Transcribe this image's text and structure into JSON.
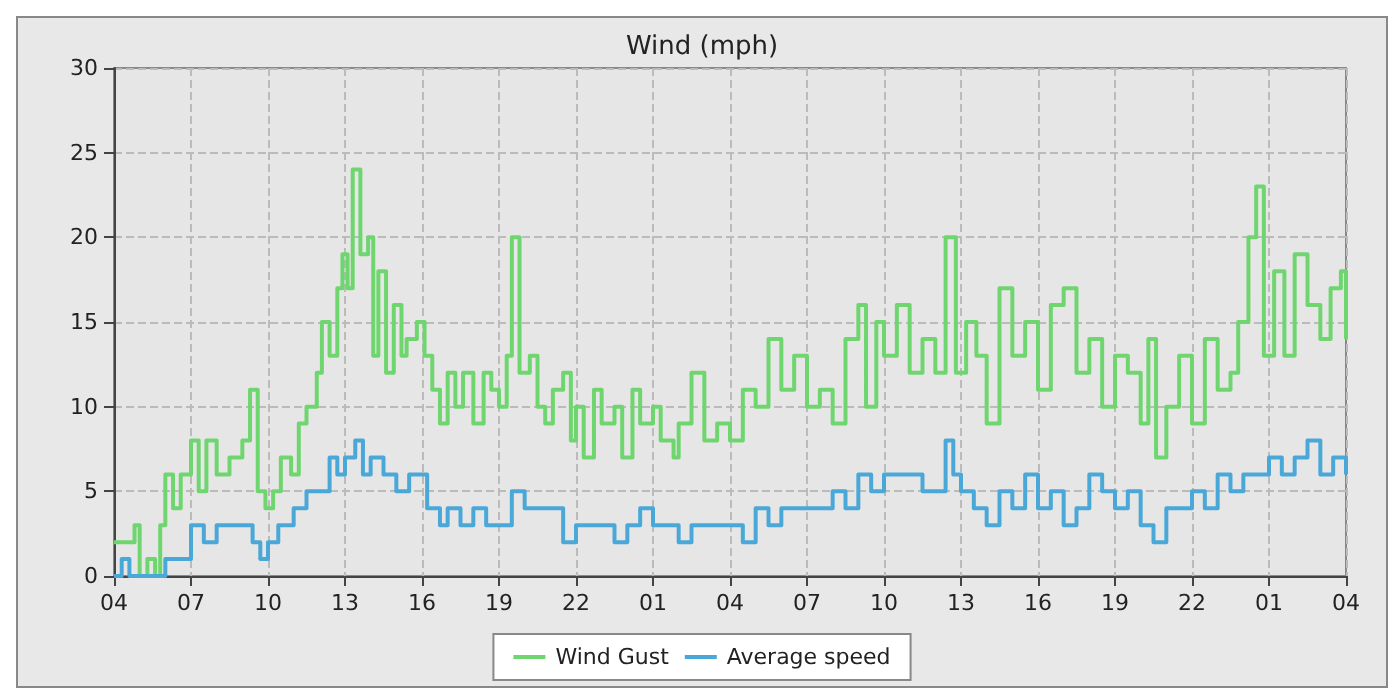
{
  "chart_data": {
    "type": "step",
    "title": "Wind (mph)",
    "xlim": [
      "--01-01T04:00",
      "--01-03T04:00"
    ],
    "xticks": [
      {
        "value": "--01-01T04:00",
        "label": "04"
      },
      {
        "value": "--01-01T07:00",
        "label": "07"
      },
      {
        "value": "--01-01T10:00",
        "label": "10"
      },
      {
        "value": "--01-01T13:00",
        "label": "13"
      },
      {
        "value": "--01-01T16:00",
        "label": "16"
      },
      {
        "value": "--01-01T19:00",
        "label": "19"
      },
      {
        "value": "--01-01T22:00",
        "label": "22"
      },
      {
        "value": "--01-02T01:00",
        "label": "01"
      },
      {
        "value": "--01-02T04:00",
        "label": "04"
      },
      {
        "value": "--01-02T07:00",
        "label": "07"
      },
      {
        "value": "--01-02T10:00",
        "label": "10"
      },
      {
        "value": "--01-02T13:00",
        "label": "13"
      },
      {
        "value": "--01-02T16:00",
        "label": "16"
      },
      {
        "value": "--01-02T19:00",
        "label": "19"
      },
      {
        "value": "--01-02T22:00",
        "label": "22"
      },
      {
        "value": "--01-03T01:00",
        "label": "01"
      },
      {
        "value": "--01-03T04:00",
        "label": "04"
      }
    ],
    "ylim": [
      0,
      30
    ],
    "yticks": [
      0,
      5,
      10,
      15,
      20,
      25,
      30
    ],
    "grid": true,
    "legend": "bottom",
    "marker": "none",
    "line_style": "solid",
    "series": [
      {
        "name": "Wind Gust",
        "color": "#6fd66f",
        "x": [
          "--01-01T04:00",
          "--01-01T04:48",
          "--01-01T05:00",
          "--01-01T05:18",
          "--01-01T05:36",
          "--01-01T05:48",
          "--01-01T06:00",
          "--01-01T06:18",
          "--01-01T06:36",
          "--01-01T07:00",
          "--01-01T07:18",
          "--01-01T07:36",
          "--01-01T08:00",
          "--01-01T08:30",
          "--01-01T09:00",
          "--01-01T09:18",
          "--01-01T09:36",
          "--01-01T09:54",
          "--01-01T10:12",
          "--01-01T10:30",
          "--01-01T10:54",
          "--01-01T11:12",
          "--01-01T11:30",
          "--01-01T11:54",
          "--01-01T12:06",
          "--01-01T12:24",
          "--01-01T12:42",
          "--01-01T12:54",
          "--01-01T13:06",
          "--01-01T13:18",
          "--01-01T13:36",
          "--01-01T13:54",
          "--01-01T14:06",
          "--01-01T14:18",
          "--01-01T14:36",
          "--01-01T14:54",
          "--01-01T15:12",
          "--01-01T15:24",
          "--01-01T15:48",
          "--01-01T16:06",
          "--01-01T16:24",
          "--01-01T16:42",
          "--01-01T17:00",
          "--01-01T17:18",
          "--01-01T17:36",
          "--01-01T18:00",
          "--01-01T18:24",
          "--01-01T18:42",
          "--01-01T19:00",
          "--01-01T19:18",
          "--01-01T19:30",
          "--01-01T19:48",
          "--01-01T20:12",
          "--01-01T20:30",
          "--01-01T20:48",
          "--01-01T21:06",
          "--01-01T21:30",
          "--01-01T21:48",
          "--01-01T22:00",
          "--01-01T22:18",
          "--01-01T22:42",
          "--01-01T23:00",
          "--01-01T23:30",
          "--01-01T23:48",
          "--01-02T00:12",
          "--01-02T00:30",
          "--01-02T01:00",
          "--01-02T01:18",
          "--01-02T01:48",
          "--01-02T02:00",
          "--01-02T02:30",
          "--01-02T03:00",
          "--01-02T03:30",
          "--01-02T04:00",
          "--01-02T04:30",
          "--01-02T05:00",
          "--01-02T05:30",
          "--01-02T06:00",
          "--01-02T06:30",
          "--01-02T07:00",
          "--01-02T07:30",
          "--01-02T08:00",
          "--01-02T08:30",
          "--01-02T09:00",
          "--01-02T09:18",
          "--01-02T09:42",
          "--01-02T10:00",
          "--01-02T10:30",
          "--01-02T11:00",
          "--01-02T11:30",
          "--01-02T12:00",
          "--01-02T12:24",
          "--01-02T12:48",
          "--01-02T13:12",
          "--01-02T13:36",
          "--01-02T14:00",
          "--01-02T14:30",
          "--01-02T15:00",
          "--01-02T15:30",
          "--01-02T16:00",
          "--01-02T16:30",
          "--01-02T17:00",
          "--01-02T17:30",
          "--01-02T18:00",
          "--01-02T18:30",
          "--01-02T19:00",
          "--01-02T19:30",
          "--01-02T20:00",
          "--01-02T20:18",
          "--01-02T20:36",
          "--01-02T21:00",
          "--01-02T21:30",
          "--01-02T22:00",
          "--01-02T22:30",
          "--01-02T23:00",
          "--01-02T23:30",
          "--01-02T23:48",
          "--01-03T00:12",
          "--01-03T00:30",
          "--01-03T00:48",
          "--01-03T01:12",
          "--01-03T01:36",
          "--01-03T02:00",
          "--01-03T02:30",
          "--01-03T03:00",
          "--01-03T03:24",
          "--01-03T03:48",
          "--01-03T04:00"
        ],
        "values": [
          2,
          3,
          0,
          1,
          0,
          3,
          6,
          4,
          6,
          8,
          5,
          8,
          6,
          7,
          8,
          11,
          5,
          4,
          5,
          7,
          6,
          9,
          10,
          12,
          15,
          13,
          17,
          19,
          17,
          24,
          19,
          20,
          13,
          18,
          12,
          16,
          13,
          14,
          15,
          13,
          11,
          9,
          12,
          10,
          12,
          9,
          12,
          11,
          10,
          13,
          20,
          12,
          13,
          10,
          9,
          11,
          12,
          8,
          10,
          7,
          11,
          9,
          10,
          7,
          11,
          9,
          10,
          8,
          7,
          9,
          12,
          8,
          9,
          8,
          11,
          10,
          14,
          11,
          13,
          10,
          11,
          9,
          14,
          16,
          10,
          15,
          13,
          16,
          12,
          14,
          12,
          20,
          12,
          15,
          13,
          9,
          17,
          13,
          15,
          11,
          16,
          17,
          12,
          14,
          10,
          13,
          12,
          9,
          14,
          7,
          10,
          13,
          9,
          14,
          11,
          12,
          15,
          20,
          23,
          13,
          18,
          13,
          19,
          16,
          14,
          17,
          18,
          14
        ]
      },
      {
        "name": "Average speed",
        "color": "#4aa8d8",
        "x": [
          "--01-01T04:00",
          "--01-01T04:18",
          "--01-01T04:36",
          "--01-01T06:00",
          "--01-01T07:00",
          "--01-01T07:30",
          "--01-01T08:00",
          "--01-01T09:00",
          "--01-01T09:24",
          "--01-01T09:42",
          "--01-01T10:00",
          "--01-01T10:24",
          "--01-01T11:00",
          "--01-01T11:30",
          "--01-01T12:00",
          "--01-01T12:24",
          "--01-01T12:42",
          "--01-01T13:00",
          "--01-01T13:24",
          "--01-01T13:42",
          "--01-01T14:00",
          "--01-01T14:30",
          "--01-01T15:00",
          "--01-01T15:30",
          "--01-01T16:12",
          "--01-01T16:42",
          "--01-01T17:00",
          "--01-01T17:30",
          "--01-01T18:00",
          "--01-01T18:30",
          "--01-01T19:30",
          "--01-01T20:00",
          "--01-01T21:00",
          "--01-01T21:30",
          "--01-01T22:00",
          "--01-01T23:00",
          "--01-01T23:30",
          "--01-02T00:00",
          "--01-02T00:30",
          "--01-02T01:00",
          "--01-02T02:00",
          "--01-02T02:30",
          "--01-02T03:00",
          "--01-02T03:30",
          "--01-02T04:30",
          "--01-02T05:00",
          "--01-02T05:30",
          "--01-02T06:00",
          "--01-02T07:00",
          "--01-02T08:00",
          "--01-02T08:30",
          "--01-02T09:00",
          "--01-02T09:30",
          "--01-02T10:00",
          "--01-02T11:00",
          "--01-02T11:30",
          "--01-02T12:24",
          "--01-02T12:42",
          "--01-02T13:00",
          "--01-02T13:30",
          "--01-02T14:00",
          "--01-02T14:30",
          "--01-02T15:00",
          "--01-02T15:30",
          "--01-02T16:00",
          "--01-02T16:30",
          "--01-02T17:00",
          "--01-02T17:30",
          "--01-02T18:00",
          "--01-02T18:30",
          "--01-02T19:00",
          "--01-02T19:30",
          "--01-02T20:00",
          "--01-02T20:30",
          "--01-02T21:00",
          "--01-02T21:30",
          "--01-02T22:00",
          "--01-02T22:30",
          "--01-02T23:00",
          "--01-02T23:30",
          "--01-03T00:00",
          "--01-03T00:30",
          "--01-03T01:00",
          "--01-03T01:30",
          "--01-03T02:00",
          "--01-03T02:30",
          "--01-03T03:00",
          "--01-03T03:30",
          "--01-03T04:00"
        ],
        "values": [
          0,
          1,
          0,
          1,
          3,
          2,
          3,
          3,
          2,
          1,
          2,
          3,
          4,
          5,
          5,
          7,
          6,
          7,
          8,
          6,
          7,
          6,
          5,
          6,
          4,
          3,
          4,
          3,
          4,
          3,
          5,
          4,
          4,
          2,
          3,
          3,
          2,
          3,
          4,
          3,
          2,
          3,
          3,
          3,
          2,
          4,
          3,
          4,
          4,
          5,
          4,
          6,
          5,
          6,
          6,
          5,
          8,
          6,
          5,
          4,
          3,
          5,
          4,
          6,
          4,
          5,
          3,
          4,
          6,
          5,
          4,
          5,
          3,
          2,
          4,
          4,
          5,
          4,
          6,
          5,
          6,
          6,
          7,
          6,
          7,
          8,
          6,
          7,
          6
        ]
      }
    ]
  }
}
